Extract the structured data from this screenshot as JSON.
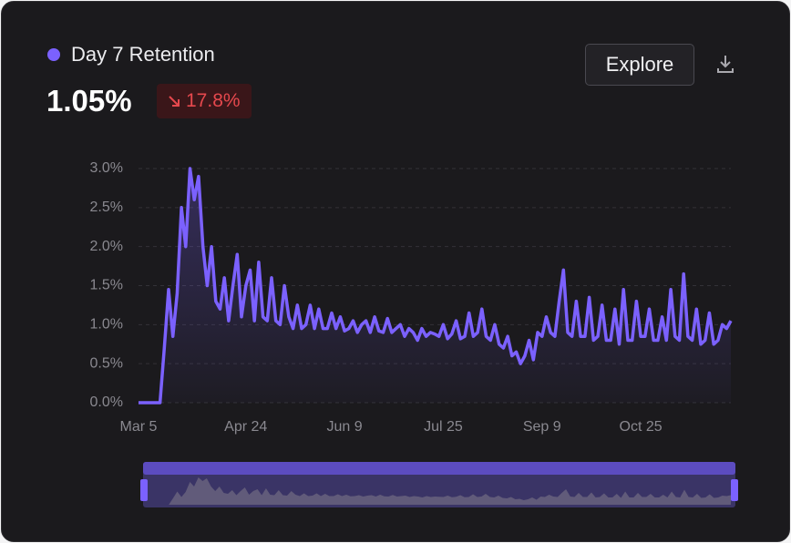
{
  "header": {
    "title": "Day 7 Retention",
    "value": "1.05%",
    "change": "17.8%",
    "button": "Explore"
  },
  "chart_data": {
    "type": "line",
    "color": "#7b61ff",
    "grid": true,
    "ylim": [
      0,
      3
    ],
    "yticks": [
      {
        "value": 0,
        "label": "0.0%"
      },
      {
        "value": 0.5,
        "label": "0.5%"
      },
      {
        "value": 1,
        "label": "1.0%"
      },
      {
        "value": 1.5,
        "label": "1.5%"
      },
      {
        "value": 2,
        "label": "2.0%"
      },
      {
        "value": 2.5,
        "label": "2.5%"
      },
      {
        "value": 3,
        "label": "3.0%"
      }
    ],
    "categories": [
      "Mar 5",
      null,
      null,
      null,
      null,
      null,
      null,
      null,
      null,
      null,
      null,
      null,
      null,
      null,
      null,
      null,
      null,
      null,
      null,
      null,
      null,
      null,
      null,
      null,
      null,
      "Apr 24",
      null,
      null,
      null,
      null,
      null,
      null,
      null,
      null,
      null,
      null,
      null,
      null,
      null,
      null,
      null,
      null,
      null,
      null,
      null,
      null,
      null,
      null,
      "Jun 9",
      null,
      null,
      null,
      null,
      null,
      null,
      null,
      null,
      null,
      null,
      null,
      null,
      null,
      null,
      null,
      null,
      null,
      null,
      null,
      null,
      null,
      null,
      "Jul 25",
      null,
      null,
      null,
      null,
      null,
      null,
      null,
      null,
      null,
      null,
      null,
      null,
      null,
      null,
      null,
      null,
      null,
      null,
      null,
      null,
      null,
      null,
      "Sep 9",
      null,
      null,
      null,
      null,
      null,
      null,
      null,
      null,
      null,
      null,
      null,
      null,
      null,
      null,
      null,
      null,
      null,
      null,
      null,
      null,
      null,
      null,
      "Oct 25",
      null,
      null,
      null,
      null,
      null,
      null,
      null,
      null,
      null,
      null,
      null,
      null,
      null,
      null,
      null,
      null,
      null,
      null,
      null,
      null,
      null
    ],
    "values": [
      0,
      0,
      0,
      0,
      0,
      0,
      0.7,
      1.45,
      0.85,
      1.4,
      2.5,
      2.0,
      3.0,
      2.6,
      2.9,
      2.0,
      1.5,
      2.0,
      1.3,
      1.2,
      1.6,
      1.05,
      1.5,
      1.9,
      1.1,
      1.5,
      1.7,
      1.05,
      1.8,
      1.1,
      1.05,
      1.6,
      1.05,
      1.0,
      1.5,
      1.1,
      0.95,
      1.25,
      0.95,
      1.0,
      1.25,
      0.95,
      1.2,
      0.95,
      0.95,
      1.15,
      0.95,
      1.1,
      0.92,
      0.95,
      1.05,
      0.9,
      1.0,
      1.05,
      0.9,
      1.1,
      0.92,
      0.9,
      1.08,
      0.9,
      0.95,
      1.0,
      0.85,
      0.95,
      0.9,
      0.8,
      0.95,
      0.85,
      0.9,
      0.88,
      0.85,
      1.0,
      0.82,
      0.88,
      1.05,
      0.82,
      0.85,
      1.15,
      0.85,
      0.9,
      1.2,
      0.85,
      0.8,
      1.0,
      0.75,
      0.7,
      0.85,
      0.6,
      0.65,
      0.5,
      0.6,
      0.8,
      0.55,
      0.9,
      0.85,
      1.1,
      0.9,
      0.85,
      1.3,
      1.7,
      0.9,
      0.85,
      1.3,
      0.85,
      0.85,
      1.35,
      0.8,
      0.85,
      1.25,
      0.8,
      0.8,
      1.2,
      0.75,
      1.45,
      0.8,
      0.8,
      1.3,
      0.85,
      0.85,
      1.2,
      0.8,
      0.8,
      1.1,
      0.8,
      1.45,
      0.85,
      0.8,
      1.65,
      0.85,
      0.8,
      1.2,
      0.75,
      0.8,
      1.15,
      0.75,
      0.8,
      1.0,
      0.95,
      1.05
    ]
  }
}
